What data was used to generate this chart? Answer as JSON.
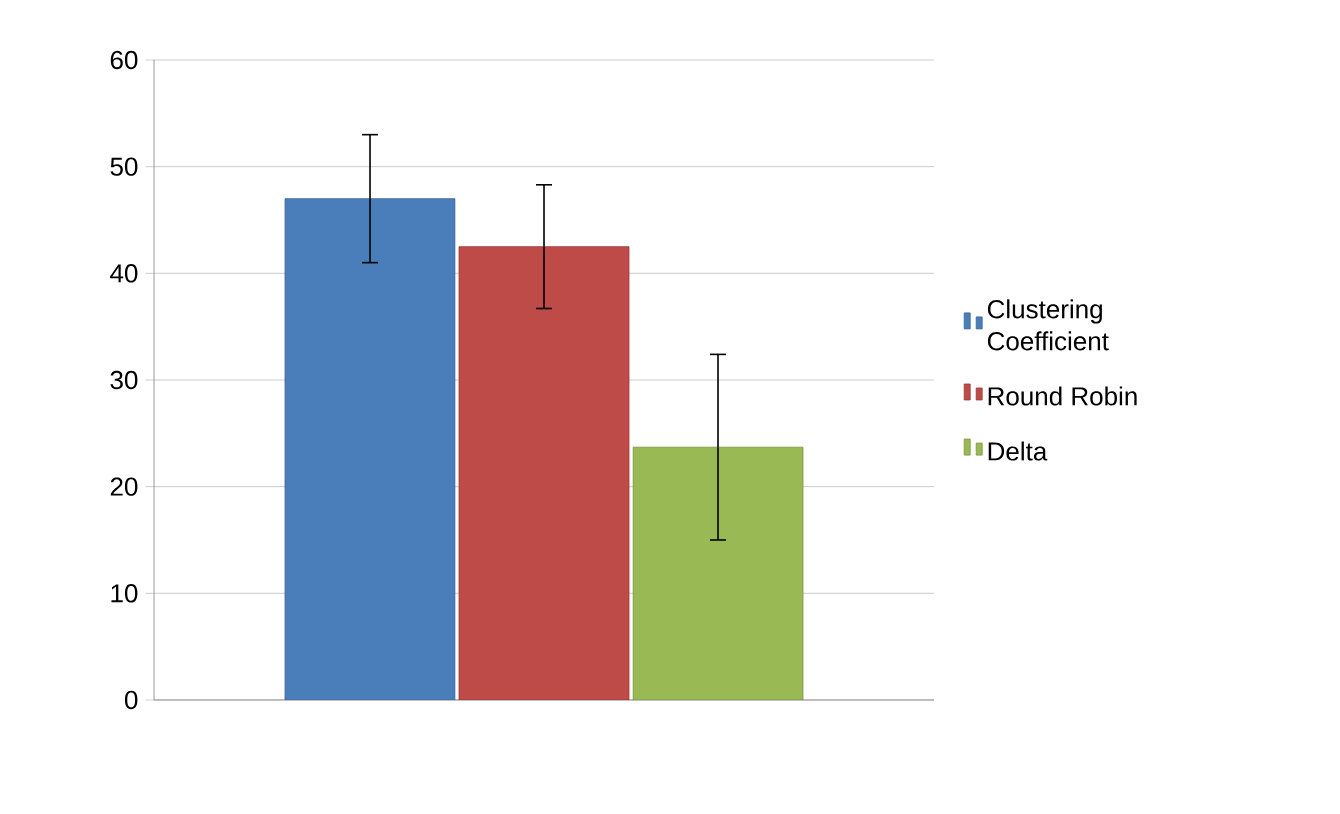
{
  "chart_data": {
    "type": "bar",
    "categories": [
      null
    ],
    "series": [
      {
        "name": "Clustering Coefficient",
        "color": "#4a7ebb",
        "values": [
          47
        ],
        "errors": [
          6
        ]
      },
      {
        "name": "Round Robin",
        "color": "#be4b48",
        "values": [
          42.5
        ],
        "errors": [
          5.8
        ]
      },
      {
        "name": "Delta",
        "color": "#98b954",
        "values": [
          23.7
        ],
        "errors": [
          8.7
        ]
      }
    ],
    "ylim": [
      0,
      60
    ],
    "yticks": [
      0,
      10,
      20,
      30,
      40,
      50,
      60
    ],
    "grid": "y",
    "legend": "right"
  }
}
